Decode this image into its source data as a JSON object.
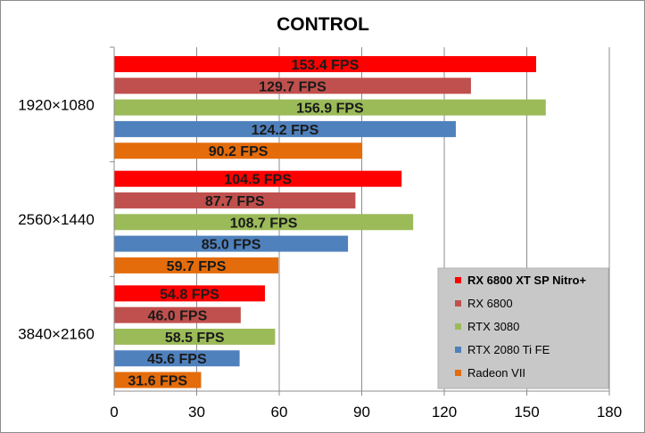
{
  "chart_data": {
    "type": "bar",
    "orientation": "horizontal",
    "title": "CONTROL",
    "xlabel": "",
    "ylabel": "",
    "xlim": [
      0,
      180
    ],
    "xticks": [
      0,
      30,
      60,
      90,
      120,
      150,
      180
    ],
    "grid": "vertical",
    "legend_position": "bottom-right",
    "categories": [
      "1920×1080",
      "2560×1440",
      "3840×2160"
    ],
    "series": [
      {
        "name": "RX 6800 XT SP Nitro+",
        "color": "#ff0000",
        "values": [
          153.4,
          104.5,
          54.8
        ],
        "labels": [
          "153.4 FPS",
          "104.5 FPS",
          "54.8 FPS"
        ],
        "legend_bold": true
      },
      {
        "name": "RX 6800",
        "color": "#c0504d",
        "values": [
          129.7,
          87.7,
          46.0
        ],
        "labels": [
          "129.7 FPS",
          "87.7 FPS",
          "46.0 FPS"
        ],
        "legend_bold": false
      },
      {
        "name": "RTX 3080",
        "color": "#9bbb59",
        "values": [
          156.9,
          108.7,
          58.5
        ],
        "labels": [
          "156.9 FPS",
          "108.7 FPS",
          "58.5 FPS"
        ],
        "legend_bold": false
      },
      {
        "name": "RTX 2080 Ti FE",
        "color": "#4f81bd",
        "values": [
          124.2,
          85.0,
          45.6
        ],
        "labels": [
          "124.2 FPS",
          "85.0 FPS",
          "45.6 FPS"
        ],
        "legend_bold": false
      },
      {
        "name": "Radeon VII",
        "color": "#e46c0a",
        "values": [
          90.2,
          59.7,
          31.6
        ],
        "labels": [
          "90.2 FPS",
          "59.7 FPS",
          "31.6 FPS"
        ],
        "legend_bold": false
      }
    ]
  }
}
